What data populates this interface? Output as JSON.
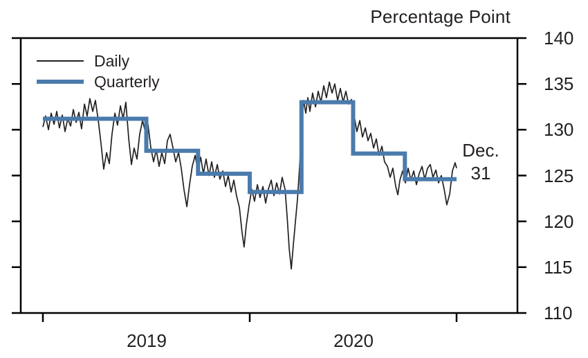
{
  "title": "Percentage Point",
  "legend": {
    "daily_label": "Daily",
    "quarterly_label": "Quarterly"
  },
  "annotation": {
    "line1": "Dec.",
    "line2": "31"
  },
  "x_labels": {
    "year1": "2019",
    "year2": "2020"
  },
  "colors": {
    "daily": "#231f20",
    "quarterly": "#4a7bac",
    "axis": "#000000",
    "text": "#231f20",
    "background": "#ffffff"
  },
  "chart_data": {
    "type": "line",
    "title": "Percentage Point",
    "ylabel": "Percentage Point",
    "ylim": [
      110,
      140
    ],
    "y_ticks": [
      140,
      135,
      130,
      125,
      120,
      115,
      110
    ],
    "x_range_years": [
      2019.0,
      2021.0
    ],
    "x_ticks_years": [
      2019,
      2020,
      2021
    ],
    "x_tick_labels": [
      "2019",
      "2020"
    ],
    "grid": false,
    "legend_position": "top-left",
    "end_annotation": {
      "text": "Dec. 31",
      "x": 2021.0,
      "y": 124.6
    },
    "series": [
      {
        "name": "Daily",
        "type": "line",
        "points": [
          [
            2019.0,
            130.3
          ],
          [
            2019.013,
            131.5
          ],
          [
            2019.027,
            130.0
          ],
          [
            2019.04,
            131.8
          ],
          [
            2019.054,
            130.6
          ],
          [
            2019.067,
            132.0
          ],
          [
            2019.08,
            130.2
          ],
          [
            2019.094,
            131.6
          ],
          [
            2019.107,
            129.8
          ],
          [
            2019.12,
            131.2
          ],
          [
            2019.134,
            130.4
          ],
          [
            2019.147,
            132.2
          ],
          [
            2019.161,
            130.8
          ],
          [
            2019.174,
            131.9
          ],
          [
            2019.187,
            130.1
          ],
          [
            2019.201,
            132.8
          ],
          [
            2019.214,
            131.5
          ],
          [
            2019.227,
            133.4
          ],
          [
            2019.241,
            132.0
          ],
          [
            2019.254,
            133.2
          ],
          [
            2019.268,
            131.0
          ],
          [
            2019.281,
            128.5
          ],
          [
            2019.294,
            125.7
          ],
          [
            2019.308,
            127.5
          ],
          [
            2019.321,
            126.3
          ],
          [
            2019.334,
            129.5
          ],
          [
            2019.348,
            131.8
          ],
          [
            2019.361,
            130.5
          ],
          [
            2019.375,
            132.6
          ],
          [
            2019.388,
            131.2
          ],
          [
            2019.401,
            133.0
          ],
          [
            2019.415,
            129.0
          ],
          [
            2019.428,
            126.2
          ],
          [
            2019.441,
            128.0
          ],
          [
            2019.455,
            126.8
          ],
          [
            2019.468,
            129.5
          ],
          [
            2019.482,
            131.0
          ],
          [
            2019.495,
            129.8
          ],
          [
            2019.508,
            130.6
          ],
          [
            2019.522,
            128.0
          ],
          [
            2019.535,
            126.5
          ],
          [
            2019.548,
            127.8
          ],
          [
            2019.562,
            126.0
          ],
          [
            2019.575,
            127.5
          ],
          [
            2019.589,
            126.3
          ],
          [
            2019.602,
            128.8
          ],
          [
            2019.615,
            129.5
          ],
          [
            2019.629,
            128.0
          ],
          [
            2019.642,
            126.5
          ],
          [
            2019.656,
            127.5
          ],
          [
            2019.669,
            125.8
          ],
          [
            2019.682,
            123.5
          ],
          [
            2019.696,
            121.6
          ],
          [
            2019.709,
            124.0
          ],
          [
            2019.722,
            126.0
          ],
          [
            2019.736,
            127.2
          ],
          [
            2019.749,
            125.5
          ],
          [
            2019.763,
            127.0
          ],
          [
            2019.776,
            125.2
          ],
          [
            2019.789,
            126.8
          ],
          [
            2019.803,
            125.0
          ],
          [
            2019.816,
            126.5
          ],
          [
            2019.829,
            124.8
          ],
          [
            2019.843,
            126.2
          ],
          [
            2019.856,
            124.6
          ],
          [
            2019.87,
            125.5
          ],
          [
            2019.883,
            123.8
          ],
          [
            2019.896,
            125.0
          ],
          [
            2019.91,
            123.2
          ],
          [
            2019.923,
            124.5
          ],
          [
            2019.936,
            122.8
          ],
          [
            2019.95,
            121.5
          ],
          [
            2019.963,
            118.8
          ],
          [
            2019.973,
            117.2
          ],
          [
            2019.983,
            119.5
          ],
          [
            2019.997,
            121.8
          ],
          [
            2020.01,
            123.5
          ],
          [
            2020.023,
            122.2
          ],
          [
            2020.037,
            124.0
          ],
          [
            2020.05,
            122.6
          ],
          [
            2020.064,
            123.8
          ],
          [
            2020.077,
            122.0
          ],
          [
            2020.09,
            123.5
          ],
          [
            2020.104,
            124.5
          ],
          [
            2020.117,
            122.8
          ],
          [
            2020.13,
            124.2
          ],
          [
            2020.144,
            123.0
          ],
          [
            2020.157,
            124.8
          ],
          [
            2020.171,
            123.5
          ],
          [
            2020.181,
            120.5
          ],
          [
            2020.191,
            117.0
          ],
          [
            2020.201,
            114.8
          ],
          [
            2020.211,
            117.5
          ],
          [
            2020.221,
            120.0
          ],
          [
            2020.231,
            122.5
          ],
          [
            2020.241,
            126.0
          ],
          [
            2020.251,
            130.5
          ],
          [
            2020.261,
            133.2
          ],
          [
            2020.271,
            131.8
          ],
          [
            2020.281,
            133.5
          ],
          [
            2020.291,
            132.0
          ],
          [
            2020.304,
            134.0
          ],
          [
            2020.318,
            132.5
          ],
          [
            2020.331,
            134.2
          ],
          [
            2020.344,
            133.0
          ],
          [
            2020.358,
            134.8
          ],
          [
            2020.371,
            133.5
          ],
          [
            2020.385,
            135.2
          ],
          [
            2020.398,
            134.0
          ],
          [
            2020.411,
            135.0
          ],
          [
            2020.425,
            133.2
          ],
          [
            2020.438,
            134.5
          ],
          [
            2020.452,
            133.0
          ],
          [
            2020.465,
            134.2
          ],
          [
            2020.478,
            132.8
          ],
          [
            2020.492,
            133.3
          ],
          [
            2020.505,
            131.5
          ],
          [
            2020.518,
            129.8
          ],
          [
            2020.532,
            131.0
          ],
          [
            2020.545,
            129.2
          ],
          [
            2020.559,
            130.2
          ],
          [
            2020.572,
            128.8
          ],
          [
            2020.585,
            129.6
          ],
          [
            2020.599,
            128.0
          ],
          [
            2020.612,
            129.0
          ],
          [
            2020.625,
            127.2
          ],
          [
            2020.639,
            128.2
          ],
          [
            2020.652,
            126.5
          ],
          [
            2020.666,
            126.0
          ],
          [
            2020.679,
            124.8
          ],
          [
            2020.692,
            125.8
          ],
          [
            2020.706,
            123.8
          ],
          [
            2020.716,
            122.9
          ],
          [
            2020.726,
            124.5
          ],
          [
            2020.739,
            125.5
          ],
          [
            2020.753,
            124.2
          ],
          [
            2020.766,
            125.8
          ],
          [
            2020.779,
            124.5
          ],
          [
            2020.793,
            125.5
          ],
          [
            2020.806,
            124.0
          ],
          [
            2020.819,
            125.2
          ],
          [
            2020.833,
            126.0
          ],
          [
            2020.846,
            124.6
          ],
          [
            2020.86,
            125.8
          ],
          [
            2020.873,
            126.2
          ],
          [
            2020.886,
            124.8
          ],
          [
            2020.9,
            125.6
          ],
          [
            2020.913,
            124.2
          ],
          [
            2020.926,
            125.0
          ],
          [
            2020.94,
            123.5
          ],
          [
            2020.953,
            121.8
          ],
          [
            2020.967,
            123.0
          ],
          [
            2020.98,
            125.5
          ],
          [
            2020.993,
            126.4
          ],
          [
            2021.0,
            125.8
          ]
        ]
      },
      {
        "name": "Quarterly",
        "type": "step",
        "quarters": [
          {
            "label": "2019 Q1",
            "start": 2019.0,
            "end": 2019.25,
            "value": 131.2
          },
          {
            "label": "2019 Q2",
            "start": 2019.25,
            "end": 2019.5,
            "value": 131.2
          },
          {
            "label": "2019 Q3",
            "start": 2019.5,
            "end": 2019.75,
            "value": 127.7
          },
          {
            "label": "2019 Q4",
            "start": 2019.75,
            "end": 2020.0,
            "value": 125.2
          },
          {
            "label": "2020 Q1",
            "start": 2020.0,
            "end": 2020.25,
            "value": 123.2
          },
          {
            "label": "2020 Q2",
            "start": 2020.25,
            "end": 2020.5,
            "value": 133.0
          },
          {
            "label": "2020 Q3",
            "start": 2020.5,
            "end": 2020.75,
            "value": 127.4
          },
          {
            "label": "2020 Q4",
            "start": 2020.75,
            "end": 2021.0,
            "value": 124.6
          }
        ]
      }
    ]
  }
}
